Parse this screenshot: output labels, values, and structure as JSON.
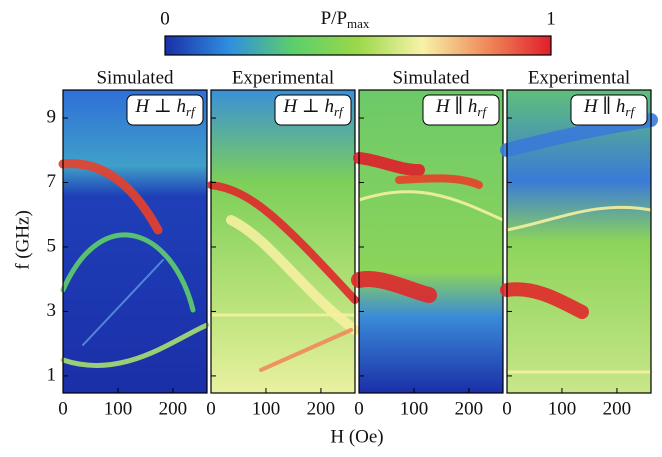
{
  "colorbar": {
    "label": {
      "main": "P/P",
      "sub": "max"
    },
    "lim": [
      0,
      1
    ],
    "ticks": [
      0,
      1
    ],
    "colors": [
      "#1a2fa8",
      "#2f8fe0",
      "#5ccf6a",
      "#9bd84a",
      "#f7f3a8",
      "#f08a5a",
      "#e01e2a"
    ]
  },
  "x_label": "H (Oe)",
  "y_label": "f (GHz)",
  "chart_data": [
    {
      "type": "heatmap",
      "title": "Simulated",
      "annotation": {
        "main": "H ⊥ h",
        "sub": "rf"
      },
      "xlim": [
        0,
        262
      ],
      "xticks": [
        0,
        100,
        200
      ],
      "ylim": [
        0.47,
        9.87
      ],
      "yticks": [
        1,
        3,
        5,
        7,
        9
      ]
    },
    {
      "type": "heatmap",
      "title": "Experimental",
      "annotation": {
        "main": "H ⊥ h",
        "sub": "rf"
      },
      "xlim": [
        0,
        262
      ],
      "xticks": [
        0,
        100,
        200
      ],
      "ylim": [
        0.47,
        9.87
      ],
      "yticks": [
        1,
        3,
        5,
        7,
        9
      ]
    },
    {
      "type": "heatmap",
      "title": "Simulated",
      "annotation": {
        "main": "H ∥ h",
        "sub": "rf"
      },
      "xlim": [
        0,
        262
      ],
      "xticks": [
        0,
        100,
        200
      ],
      "ylim": [
        0.47,
        9.87
      ],
      "yticks": [
        1,
        3,
        5,
        7,
        9
      ]
    },
    {
      "type": "heatmap",
      "title": "Experimental",
      "annotation": {
        "main": "H ∥ h",
        "sub": "rf"
      },
      "xlim": [
        0,
        262
      ],
      "xticks": [
        0,
        100,
        200
      ],
      "ylim": [
        0.47,
        9.87
      ],
      "yticks": [
        1,
        3,
        5,
        7,
        9
      ]
    }
  ]
}
